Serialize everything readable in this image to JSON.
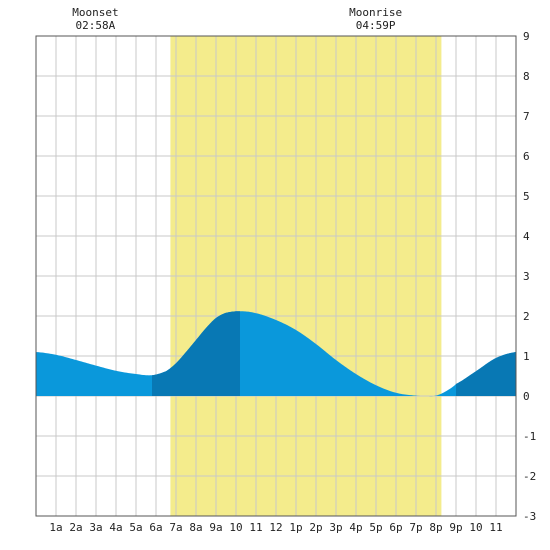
{
  "chart_data": {
    "type": "area",
    "title": "",
    "xlabel": "",
    "ylabel": "",
    "x_unit": "hour of day",
    "xlim": [
      0,
      24
    ],
    "ylim": [
      -3,
      9
    ],
    "y_ticks": [
      -3,
      -2,
      -1,
      0,
      1,
      2,
      3,
      4,
      5,
      6,
      7,
      8,
      9
    ],
    "grid": true,
    "x_tick_positions": [
      1,
      2,
      3,
      4,
      5,
      6,
      7,
      8,
      9,
      10,
      11,
      12,
      13,
      14,
      15,
      16,
      17,
      18,
      19,
      20,
      21,
      22,
      23
    ],
    "x_tick_labels": [
      "1a",
      "2a",
      "3a",
      "4a",
      "5a",
      "6a",
      "7a",
      "8a",
      "9a",
      "10",
      "11",
      "12",
      "1p",
      "2p",
      "3p",
      "4p",
      "5p",
      "6p",
      "7p",
      "8p",
      "9p",
      "10",
      "11"
    ],
    "daylight": [
      6.72,
      20.27
    ],
    "series": [
      {
        "x": [
          0,
          1,
          2,
          3,
          4,
          5,
          5.8,
          6.5,
          7,
          7.5,
          8,
          8.5,
          9,
          9.5,
          10.2,
          11,
          12,
          13,
          14,
          15,
          16,
          17,
          18,
          19,
          19.5,
          20,
          20.5,
          21,
          22,
          23,
          24
        ],
        "values": [
          1.1,
          1.03,
          0.9,
          0.76,
          0.63,
          0.55,
          0.52,
          0.62,
          0.82,
          1.1,
          1.4,
          1.7,
          1.95,
          2.08,
          2.12,
          2.07,
          1.9,
          1.65,
          1.3,
          0.9,
          0.55,
          0.27,
          0.08,
          0.01,
          0.0,
          0.01,
          0.12,
          0.3,
          0.62,
          0.95,
          1.1
        ]
      }
    ],
    "shaded_segments": [
      [
        5.8,
        10.2
      ],
      [
        21,
        24
      ]
    ],
    "colors": {
      "daylight": "#f4ec8c",
      "water": "#0a98db",
      "water_dark": "#0878b4",
      "grid": "#c8c8c8"
    },
    "annotations": [
      {
        "label": "Moonset",
        "time": "02:58A",
        "x": 2.97
      },
      {
        "label": "Moonrise",
        "time": "04:59P",
        "x": 16.98
      }
    ]
  }
}
